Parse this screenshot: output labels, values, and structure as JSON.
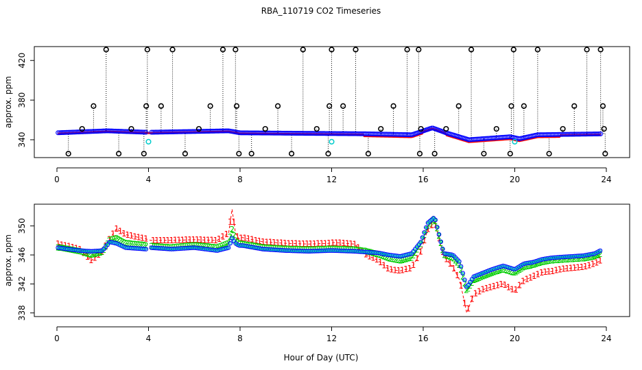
{
  "title": "RBA_110719  CO2 Timeseries",
  "xlabel": "Hour of Day (UTC)",
  "colors": {
    "point": "#000000",
    "series1": "#ff0000",
    "series2": "#00cc00",
    "series3": "#0000ff",
    "flagged": "#00cccc"
  },
  "chart_data": [
    {
      "type": "scatter",
      "name": "top-panel",
      "ylabel": "approx. ppm",
      "xlim": [
        0,
        24
      ],
      "ylim": [
        322,
        434
      ],
      "x_ticks": [
        0,
        4,
        8,
        12,
        16,
        20,
        24
      ],
      "x_tick_labels": [
        "0",
        "4",
        "8",
        "12",
        "16",
        "20",
        "24"
      ],
      "y_ticks": [
        340,
        380,
        420
      ],
      "y_tick_labels": [
        "340",
        "380",
        "420"
      ],
      "baseline_levels": [
        {
          "x": 0,
          "y": 347
        },
        {
          "x": 2.2,
          "y": 349
        },
        {
          "x": 4,
          "y": 347.5
        },
        {
          "x": 7.5,
          "y": 349
        },
        {
          "x": 8,
          "y": 347
        },
        {
          "x": 13.5,
          "y": 346
        },
        {
          "x": 15.5,
          "y": 345
        },
        {
          "x": 16.4,
          "y": 352
        },
        {
          "x": 17,
          "y": 347
        },
        {
          "x": 18,
          "y": 340
        },
        {
          "x": 19.8,
          "y": 343
        },
        {
          "x": 20.2,
          "y": 341
        },
        {
          "x": 21,
          "y": 345
        },
        {
          "x": 24,
          "y": 346
        }
      ],
      "spikes": [
        {
          "x": 0.5,
          "y": 326
        },
        {
          "x": 1.1,
          "y": 351
        },
        {
          "x": 1.6,
          "y": 374
        },
        {
          "x": 2.15,
          "y": 431
        },
        {
          "x": 2.7,
          "y": 326
        },
        {
          "x": 3.25,
          "y": 351
        },
        {
          "x": 3.8,
          "y": 326
        },
        {
          "x": 3.9,
          "y": 374
        },
        {
          "x": 3.95,
          "y": 431
        },
        {
          "x": 4.55,
          "y": 374
        },
        {
          "x": 5.05,
          "y": 431
        },
        {
          "x": 5.6,
          "y": 326
        },
        {
          "x": 6.2,
          "y": 351
        },
        {
          "x": 6.7,
          "y": 374
        },
        {
          "x": 7.25,
          "y": 431
        },
        {
          "x": 7.8,
          "y": 431
        },
        {
          "x": 7.85,
          "y": 374
        },
        {
          "x": 7.95,
          "y": 326
        },
        {
          "x": 8.5,
          "y": 326
        },
        {
          "x": 9.1,
          "y": 351
        },
        {
          "x": 9.65,
          "y": 374
        },
        {
          "x": 10.25,
          "y": 326
        },
        {
          "x": 10.75,
          "y": 431
        },
        {
          "x": 11.35,
          "y": 351
        },
        {
          "x": 11.85,
          "y": 326
        },
        {
          "x": 11.9,
          "y": 374
        },
        {
          "x": 12.0,
          "y": 431
        },
        {
          "x": 12.5,
          "y": 374
        },
        {
          "x": 13.05,
          "y": 431
        },
        {
          "x": 13.6,
          "y": 326
        },
        {
          "x": 14.15,
          "y": 351
        },
        {
          "x": 14.7,
          "y": 374
        },
        {
          "x": 15.3,
          "y": 431
        },
        {
          "x": 15.8,
          "y": 431
        },
        {
          "x": 15.85,
          "y": 326
        },
        {
          "x": 15.9,
          "y": 351
        },
        {
          "x": 16.5,
          "y": 326
        },
        {
          "x": 17.0,
          "y": 351
        },
        {
          "x": 17.55,
          "y": 374
        },
        {
          "x": 18.1,
          "y": 431
        },
        {
          "x": 18.65,
          "y": 326
        },
        {
          "x": 19.2,
          "y": 351
        },
        {
          "x": 19.8,
          "y": 326
        },
        {
          "x": 19.85,
          "y": 374
        },
        {
          "x": 19.95,
          "y": 431
        },
        {
          "x": 20.4,
          "y": 374
        },
        {
          "x": 21.0,
          "y": 431
        },
        {
          "x": 21.5,
          "y": 326
        },
        {
          "x": 22.1,
          "y": 351
        },
        {
          "x": 22.6,
          "y": 374
        },
        {
          "x": 23.15,
          "y": 431
        },
        {
          "x": 23.75,
          "y": 431
        },
        {
          "x": 23.85,
          "y": 374
        },
        {
          "x": 23.9,
          "y": 351
        },
        {
          "x": 23.95,
          "y": 326
        }
      ],
      "flagged_points": [
        {
          "x": 4.0,
          "y": 338
        },
        {
          "x": 12.0,
          "y": 338
        },
        {
          "x": 20.0,
          "y": 338
        }
      ]
    },
    {
      "type": "scatter",
      "name": "bottom-panel",
      "ylabel": "approx. ppm",
      "xlim": [
        0,
        24
      ],
      "ylim": [
        337.5,
        353
      ],
      "x_ticks": [
        0,
        4,
        8,
        12,
        16,
        20,
        24
      ],
      "x_tick_labels": [
        "0",
        "4",
        "8",
        "12",
        "16",
        "20",
        "24"
      ],
      "y_ticks": [
        338,
        342,
        346,
        350
      ],
      "y_tick_labels": [
        "338",
        "342",
        "346",
        "350"
      ],
      "series": [
        {
          "name": "1",
          "marker": "1",
          "color_key": "series1",
          "offset": 0.9,
          "points": [
            {
              "x": 0.05,
              "y": 347.5
            },
            {
              "x": 0.5,
              "y": 347.2
            },
            {
              "x": 1.0,
              "y": 346.8
            },
            {
              "x": 1.5,
              "y": 345.2
            },
            {
              "x": 2.0,
              "y": 346.5
            },
            {
              "x": 2.3,
              "y": 348.2
            },
            {
              "x": 2.6,
              "y": 349.6
            },
            {
              "x": 3.0,
              "y": 348.8
            },
            {
              "x": 3.9,
              "y": 348.2
            },
            {
              "x": 4.1,
              "y": 348.0
            },
            {
              "x": 5.0,
              "y": 348.0
            },
            {
              "x": 6.0,
              "y": 348.1
            },
            {
              "x": 7.0,
              "y": 348.0
            },
            {
              "x": 7.5,
              "y": 349.0
            },
            {
              "x": 7.65,
              "y": 352.3
            },
            {
              "x": 7.8,
              "y": 349.0
            },
            {
              "x": 7.95,
              "y": 348.2
            },
            {
              "x": 8.1,
              "y": 348.4
            },
            {
              "x": 9.0,
              "y": 347.8
            },
            {
              "x": 10.0,
              "y": 347.6
            },
            {
              "x": 11.0,
              "y": 347.5
            },
            {
              "x": 11.9,
              "y": 347.6
            },
            {
              "x": 12.1,
              "y": 347.7
            },
            {
              "x": 13.0,
              "y": 347.5
            },
            {
              "x": 13.5,
              "y": 346.0
            },
            {
              "x": 14.0,
              "y": 345.3
            },
            {
              "x": 14.5,
              "y": 344.0
            },
            {
              "x": 15.0,
              "y": 343.8
            },
            {
              "x": 15.5,
              "y": 344.2
            },
            {
              "x": 15.9,
              "y": 346.5
            },
            {
              "x": 16.2,
              "y": 349.5
            },
            {
              "x": 16.5,
              "y": 350.5
            },
            {
              "x": 16.9,
              "y": 345.8
            },
            {
              "x": 17.3,
              "y": 344.3
            },
            {
              "x": 17.6,
              "y": 342.5
            },
            {
              "x": 17.9,
              "y": 338.0
            },
            {
              "x": 18.2,
              "y": 340.5
            },
            {
              "x": 18.6,
              "y": 341.2
            },
            {
              "x": 19.0,
              "y": 341.6
            },
            {
              "x": 19.5,
              "y": 342.0
            },
            {
              "x": 20.0,
              "y": 341.0
            },
            {
              "x": 20.4,
              "y": 342.5
            },
            {
              "x": 20.8,
              "y": 343.0
            },
            {
              "x": 21.2,
              "y": 343.6
            },
            {
              "x": 21.6,
              "y": 343.7
            },
            {
              "x": 22.0,
              "y": 344.0
            },
            {
              "x": 22.5,
              "y": 344.2
            },
            {
              "x": 23.0,
              "y": 344.3
            },
            {
              "x": 23.5,
              "y": 344.8
            },
            {
              "x": 23.8,
              "y": 345.3
            }
          ]
        },
        {
          "name": "2",
          "marker": "2",
          "color_key": "series2",
          "offset": 0.2,
          "points": [
            {
              "x": 0.05,
              "y": 347.0
            },
            {
              "x": 0.5,
              "y": 346.8
            },
            {
              "x": 1.0,
              "y": 346.5
            },
            {
              "x": 1.5,
              "y": 346.0
            },
            {
              "x": 2.0,
              "y": 346.4
            },
            {
              "x": 2.3,
              "y": 348.0
            },
            {
              "x": 2.6,
              "y": 348.3
            },
            {
              "x": 3.0,
              "y": 347.6
            },
            {
              "x": 3.9,
              "y": 347.3
            },
            {
              "x": 4.1,
              "y": 347.2
            },
            {
              "x": 5.0,
              "y": 347.0
            },
            {
              "x": 6.0,
              "y": 347.3
            },
            {
              "x": 7.0,
              "y": 347.0
            },
            {
              "x": 7.5,
              "y": 347.6
            },
            {
              "x": 7.65,
              "y": 349.5
            },
            {
              "x": 7.8,
              "y": 348.0
            },
            {
              "x": 7.95,
              "y": 347.5
            },
            {
              "x": 8.1,
              "y": 347.5
            },
            {
              "x": 9.0,
              "y": 347.0
            },
            {
              "x": 10.0,
              "y": 346.8
            },
            {
              "x": 11.0,
              "y": 346.7
            },
            {
              "x": 11.9,
              "y": 346.8
            },
            {
              "x": 12.1,
              "y": 346.8
            },
            {
              "x": 13.0,
              "y": 346.7
            },
            {
              "x": 13.5,
              "y": 346.5
            },
            {
              "x": 14.0,
              "y": 346.1
            },
            {
              "x": 14.5,
              "y": 345.5
            },
            {
              "x": 15.0,
              "y": 345.2
            },
            {
              "x": 15.5,
              "y": 345.6
            },
            {
              "x": 15.9,
              "y": 347.5
            },
            {
              "x": 16.2,
              "y": 350.0
            },
            {
              "x": 16.5,
              "y": 351.0
            },
            {
              "x": 16.9,
              "y": 346.0
            },
            {
              "x": 17.3,
              "y": 345.6
            },
            {
              "x": 17.6,
              "y": 344.5
            },
            {
              "x": 17.9,
              "y": 341.0
            },
            {
              "x": 18.2,
              "y": 342.5
            },
            {
              "x": 18.6,
              "y": 343.0
            },
            {
              "x": 19.0,
              "y": 343.5
            },
            {
              "x": 19.5,
              "y": 344.0
            },
            {
              "x": 20.0,
              "y": 343.5
            },
            {
              "x": 20.4,
              "y": 344.3
            },
            {
              "x": 20.8,
              "y": 344.6
            },
            {
              "x": 21.2,
              "y": 345.0
            },
            {
              "x": 21.6,
              "y": 345.2
            },
            {
              "x": 22.0,
              "y": 345.3
            },
            {
              "x": 22.5,
              "y": 345.4
            },
            {
              "x": 23.0,
              "y": 345.5
            },
            {
              "x": 23.5,
              "y": 345.8
            },
            {
              "x": 23.8,
              "y": 346.2
            }
          ]
        },
        {
          "name": "3",
          "marker": "3",
          "color_key": "series3",
          "offset": 0.5,
          "points": [
            {
              "x": 0.05,
              "y": 347.0
            },
            {
              "x": 0.5,
              "y": 346.8
            },
            {
              "x": 1.0,
              "y": 346.6
            },
            {
              "x": 1.5,
              "y": 346.5
            },
            {
              "x": 2.0,
              "y": 346.6
            },
            {
              "x": 2.3,
              "y": 347.8
            },
            {
              "x": 2.6,
              "y": 347.6
            },
            {
              "x": 3.0,
              "y": 347.0
            },
            {
              "x": 3.9,
              "y": 346.8
            },
            {
              "x": 4.1,
              "y": 347.0
            },
            {
              "x": 5.0,
              "y": 346.8
            },
            {
              "x": 6.0,
              "y": 347.0
            },
            {
              "x": 7.0,
              "y": 346.6
            },
            {
              "x": 7.5,
              "y": 347.0
            },
            {
              "x": 7.65,
              "y": 348.3
            },
            {
              "x": 7.8,
              "y": 347.6
            },
            {
              "x": 7.95,
              "y": 347.3
            },
            {
              "x": 8.1,
              "y": 347.3
            },
            {
              "x": 9.0,
              "y": 346.8
            },
            {
              "x": 10.0,
              "y": 346.6
            },
            {
              "x": 11.0,
              "y": 346.5
            },
            {
              "x": 11.9,
              "y": 346.6
            },
            {
              "x": 12.1,
              "y": 346.6
            },
            {
              "x": 13.0,
              "y": 346.5
            },
            {
              "x": 13.5,
              "y": 346.4
            },
            {
              "x": 14.0,
              "y": 346.3
            },
            {
              "x": 14.5,
              "y": 346.0
            },
            {
              "x": 15.0,
              "y": 345.8
            },
            {
              "x": 15.5,
              "y": 346.2
            },
            {
              "x": 15.9,
              "y": 347.8
            },
            {
              "x": 16.2,
              "y": 350.4
            },
            {
              "x": 16.5,
              "y": 351.2
            },
            {
              "x": 16.9,
              "y": 346.2
            },
            {
              "x": 17.3,
              "y": 346.0
            },
            {
              "x": 17.6,
              "y": 345.0
            },
            {
              "x": 17.9,
              "y": 341.5
            },
            {
              "x": 18.2,
              "y": 343.0
            },
            {
              "x": 18.6,
              "y": 343.5
            },
            {
              "x": 19.0,
              "y": 344.0
            },
            {
              "x": 19.5,
              "y": 344.5
            },
            {
              "x": 20.0,
              "y": 344.0
            },
            {
              "x": 20.4,
              "y": 344.8
            },
            {
              "x": 20.8,
              "y": 345.0
            },
            {
              "x": 21.2,
              "y": 345.4
            },
            {
              "x": 21.6,
              "y": 345.6
            },
            {
              "x": 22.0,
              "y": 345.7
            },
            {
              "x": 22.5,
              "y": 345.8
            },
            {
              "x": 23.0,
              "y": 345.9
            },
            {
              "x": 23.5,
              "y": 346.2
            },
            {
              "x": 23.8,
              "y": 346.7
            }
          ]
        }
      ]
    }
  ]
}
